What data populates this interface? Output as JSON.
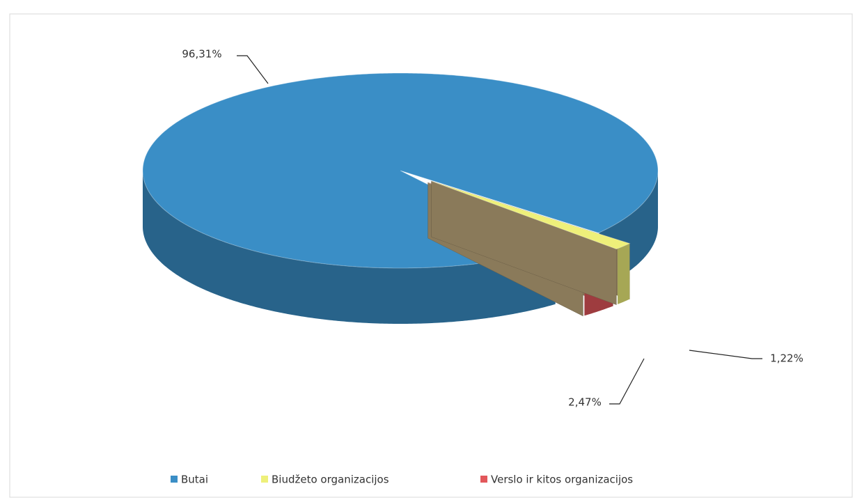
{
  "chart_data": {
    "type": "pie3d",
    "categories": [
      "Butai",
      "Biudžeto organizacijos",
      "Verslo ir kitos organizacijos"
    ],
    "values": [
      96.31,
      1.22,
      2.47
    ],
    "value_labels": [
      "96,31%",
      "1,22%",
      "2,47%"
    ],
    "colors": [
      "#3a8ec6",
      "#eef07a",
      "#e2575b"
    ],
    "legend": "bottom"
  }
}
